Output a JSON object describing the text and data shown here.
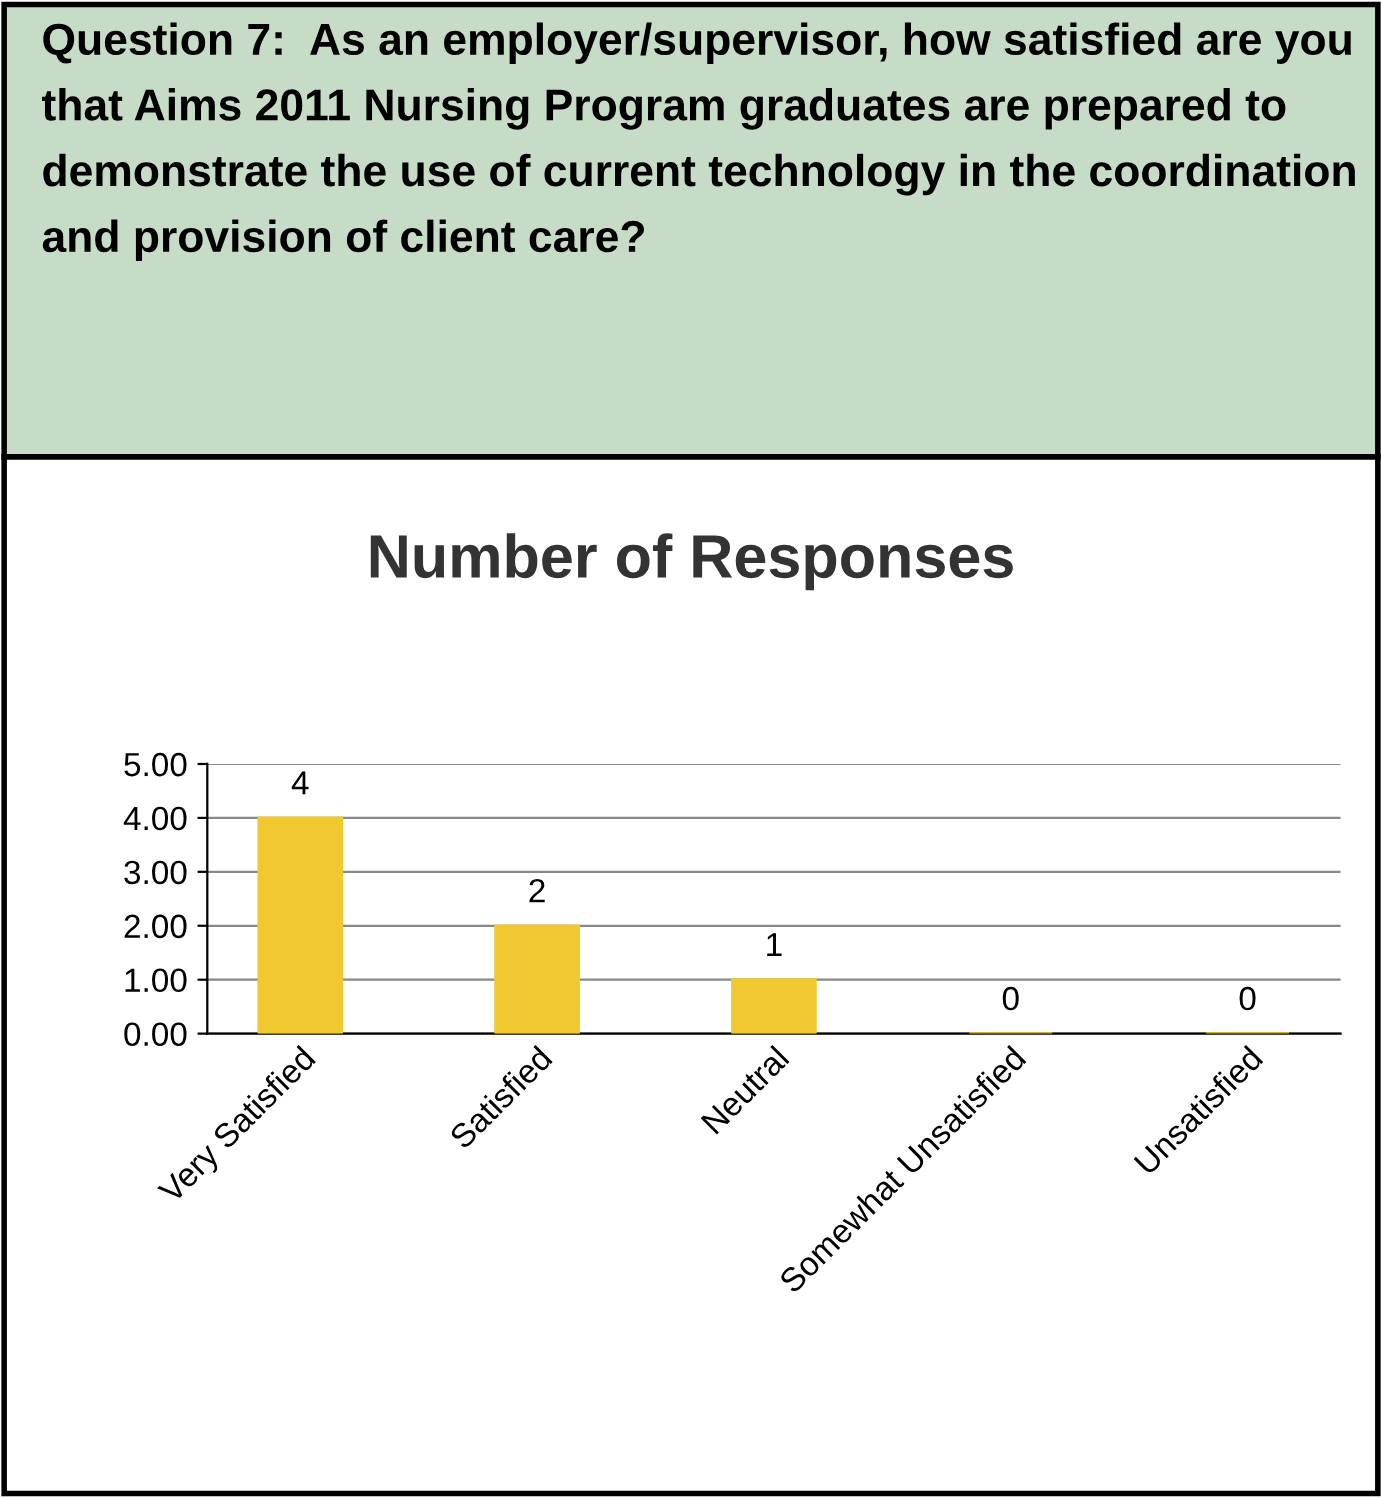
{
  "chart_data": {
    "type": "bar",
    "title": "Question 7:  As an employer/supervisor, how satisfied are you that Aims 2011 Nursing Program graduates are prepared to demonstrate the use of current technology in the coordination and provision of client care?",
    "subtitle": "Number of Responses",
    "categories": [
      "Very Satisfied",
      "Satisfied",
      "Neutral",
      "Somewhat Unsatisfied",
      "Unsatisfied"
    ],
    "values": [
      4,
      2,
      1,
      0,
      0
    ],
    "color": "#f0c830",
    "ylim": [
      0,
      5
    ],
    "yticks": [
      {
        "value": 0,
        "label": "0.00"
      },
      {
        "value": 1,
        "label": "1.00"
      },
      {
        "value": 2,
        "label": "2.00"
      },
      {
        "value": 3,
        "label": "3.00"
      },
      {
        "value": 4,
        "label": "4.00"
      },
      {
        "value": 5,
        "label": "5.00"
      }
    ],
    "grid": "y",
    "data_labels": true,
    "legend": false
  }
}
